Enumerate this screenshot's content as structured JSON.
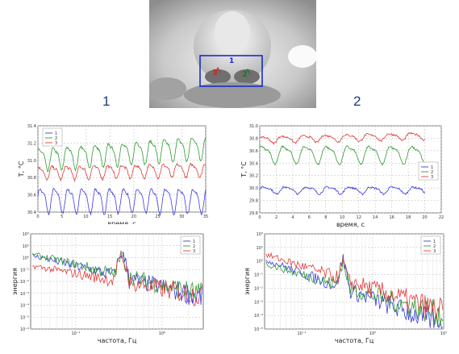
{
  "photo": {
    "roi_label": "1",
    "points": [
      {
        "label": "3",
        "color": "#cc2222"
      },
      {
        "label": "2",
        "color": "#227722"
      }
    ]
  },
  "panel_labels": [
    "1",
    "2"
  ],
  "colors": {
    "s1": "#3b3bdf",
    "s2": "#2e9a2e",
    "s3": "#e03a3a",
    "roi": "#1a2cc8"
  },
  "chart_data": [
    {
      "id": "temp-left",
      "type": "line",
      "xlabel": "время, с",
      "ylabel": "T, °C",
      "xlim": [
        0,
        35
      ],
      "ylim": [
        30.4,
        31.4
      ],
      "xticks": [
        0,
        5,
        10,
        15,
        20,
        25,
        30,
        35
      ],
      "yticks": [
        30.4,
        30.6,
        30.8,
        31.0,
        31.2,
        31.4
      ],
      "legend_position": "top-left",
      "series": [
        {
          "name": "1",
          "color": "#3b3bdf",
          "base": 30.55,
          "amp": 0.13,
          "period": 2.9,
          "drift": 0.0
        },
        {
          "name": "2",
          "color": "#2e9a2e",
          "base": 31.02,
          "amp": 0.12,
          "period": 2.9,
          "drift": 0.004
        },
        {
          "name": "3",
          "color": "#e03a3a",
          "base": 30.86,
          "amp": 0.07,
          "period": 2.9,
          "drift": 0.001
        }
      ]
    },
    {
      "id": "temp-right",
      "type": "line",
      "xlabel": "время, с",
      "ylabel": "T, °C",
      "xlim": [
        0,
        22
      ],
      "ylim": [
        29.6,
        31.0
      ],
      "xticks": [
        0,
        2,
        4,
        6,
        8,
        10,
        12,
        14,
        16,
        18,
        20,
        22
      ],
      "yticks": [
        29.6,
        29.8,
        30.0,
        30.2,
        30.4,
        30.6,
        30.8,
        31.0
      ],
      "legend_position": "right",
      "series": [
        {
          "name": "1",
          "color": "#3b3bdf",
          "base": 29.97,
          "amp": 0.05,
          "period": 2.6,
          "drift": 0.0
        },
        {
          "name": "2",
          "color": "#2e9a2e",
          "base": 30.55,
          "amp": 0.13,
          "period": 2.6,
          "drift": 0.0
        },
        {
          "name": "3",
          "color": "#e03a3a",
          "base": 30.78,
          "amp": 0.05,
          "period": 2.6,
          "drift": 0.003
        }
      ]
    },
    {
      "id": "spectrum-left",
      "type": "line",
      "xlabel": "частота, Гц",
      "ylabel": "энергия",
      "xscale": "log",
      "yscale": "log",
      "xlim": [
        0.03,
        3
      ],
      "ylim": [
        1e-06,
        100.0
      ],
      "xticks": [
        0.1,
        1
      ],
      "xtick_labels": [
        "10⁻¹",
        "10⁰"
      ],
      "yticks": [
        1e-06,
        1e-05,
        0.0001,
        0.001,
        0.01,
        0.1,
        1,
        10,
        100
      ],
      "ytick_labels": [
        "10⁻⁶",
        "10⁻⁵",
        "10⁻⁴",
        "10⁻³",
        "10⁻²",
        "10⁻¹",
        "10⁰",
        "10¹",
        "10²"
      ],
      "legend_position": "top-right",
      "series": [
        {
          "name": "1",
          "color": "#3b3bdf",
          "start": 1.5,
          "peak_f": 0.34,
          "peak": 3,
          "end": 0.0005
        },
        {
          "name": "2",
          "color": "#2e9a2e",
          "start": 2.0,
          "peak_f": 0.34,
          "peak": 2,
          "end": 0.0008
        },
        {
          "name": "3",
          "color": "#e03a3a",
          "start": 0.2,
          "peak_f": 0.34,
          "peak": 1.5,
          "end": 0.0006
        }
      ]
    },
    {
      "id": "spectrum-right",
      "type": "line",
      "xlabel": "частота, Гц",
      "ylabel": "энергия",
      "xscale": "log",
      "yscale": "log",
      "xlim": [
        0.03,
        10
      ],
      "ylim": [
        1e-05,
        100.0
      ],
      "xticks": [
        0.1,
        1,
        10
      ],
      "xtick_labels": [
        "10⁻¹",
        "10⁰",
        "10¹"
      ],
      "yticks": [
        1e-05,
        0.0001,
        0.001,
        0.01,
        0.1,
        1,
        10,
        100
      ],
      "ytick_labels": [
        "10⁻⁵",
        "10⁻⁴",
        "10⁻³",
        "10⁻²",
        "10⁻¹",
        "10⁰",
        "10¹",
        "10²"
      ],
      "legend_position": "top-right",
      "series": [
        {
          "name": "1",
          "color": "#3b3bdf",
          "start": 1.2,
          "peak_f": 0.38,
          "peak": 1.5,
          "end": 2e-05
        },
        {
          "name": "2",
          "color": "#2e9a2e",
          "start": 0.6,
          "peak_f": 0.38,
          "peak": 1.2,
          "end": 0.0001
        },
        {
          "name": "3",
          "color": "#e03a3a",
          "start": 3.0,
          "peak_f": 0.38,
          "peak": 1.0,
          "end": 0.0002
        }
      ]
    }
  ]
}
